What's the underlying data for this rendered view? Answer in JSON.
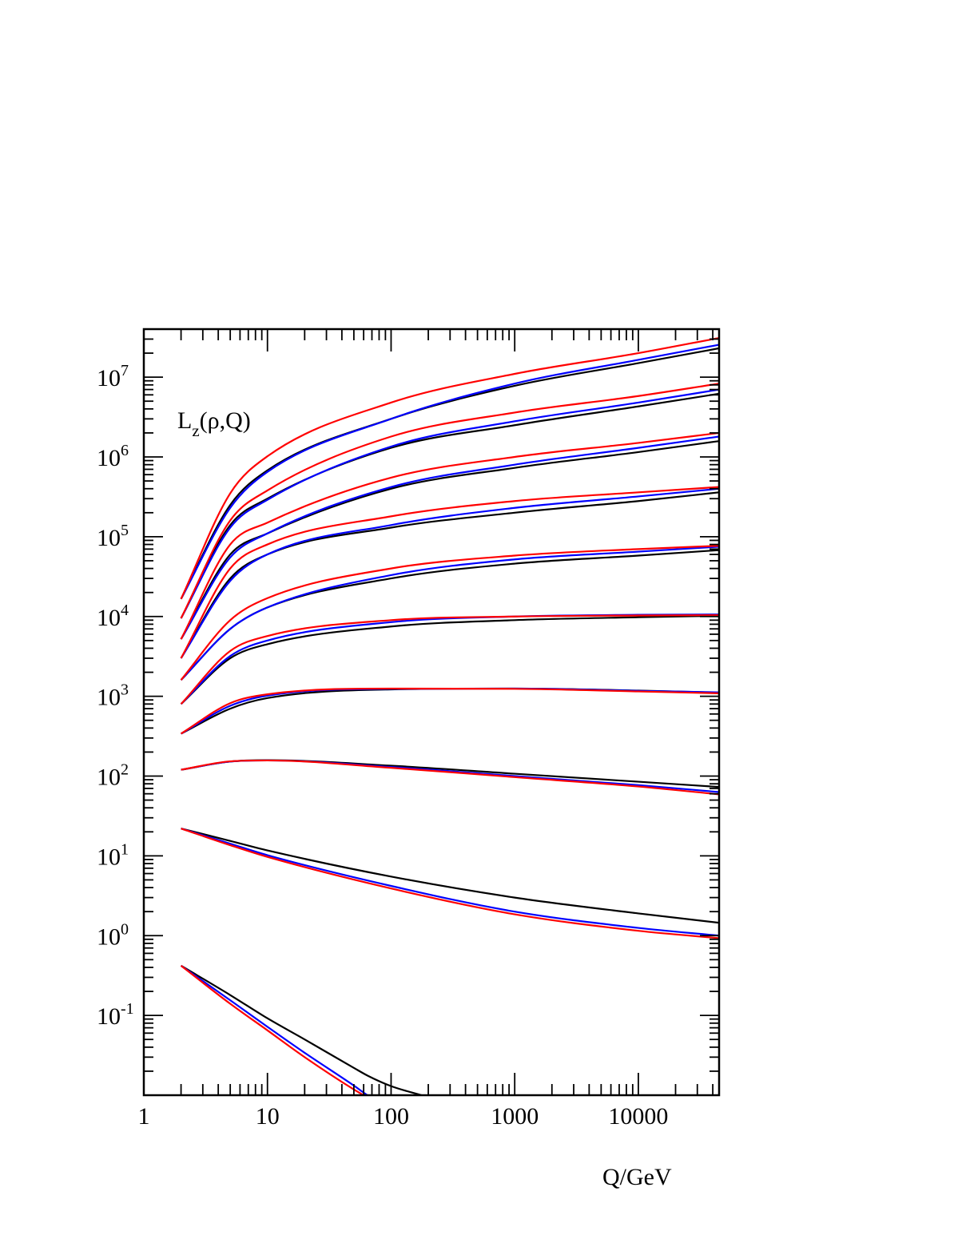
{
  "chart_data": {
    "type": "line",
    "title": "",
    "annotation": {
      "main": "L",
      "sub": "z",
      "rest": "(ρ,Q)"
    },
    "xlabel": "Q/GeV",
    "ylabel": "",
    "x_scale": "log",
    "y_scale": "log",
    "xlim": [
      1,
      45000
    ],
    "ylim": [
      0.01,
      40000000
    ],
    "x_ticks": [
      {
        "value": 1,
        "label": "1"
      },
      {
        "value": 10,
        "label": "10"
      },
      {
        "value": 100,
        "label": "100"
      },
      {
        "value": 1000,
        "label": "1000"
      },
      {
        "value": 10000,
        "label": "10000"
      }
    ],
    "y_ticks": [
      {
        "value": 0.1,
        "base": "10",
        "exp": "-1"
      },
      {
        "value": 1,
        "base": "10",
        "exp": "0"
      },
      {
        "value": 10,
        "base": "10",
        "exp": "1"
      },
      {
        "value": 100,
        "base": "10",
        "exp": "2"
      },
      {
        "value": 1000,
        "base": "10",
        "exp": "3"
      },
      {
        "value": 10000,
        "base": "10",
        "exp": "4"
      },
      {
        "value": 100000,
        "base": "10",
        "exp": "5"
      },
      {
        "value": 1000000,
        "base": "10",
        "exp": "6"
      },
      {
        "value": 10000000,
        "base": "10",
        "exp": "7"
      }
    ],
    "colors": {
      "black": "#000000",
      "blue": "#0000ff",
      "red": "#ff0000"
    },
    "groups": [
      {
        "x": [
          2,
          5,
          10,
          100,
          1000,
          10000,
          45000
        ],
        "black": [
          16600,
          250000,
          680000,
          3000000,
          7800000,
          15000000,
          23000000
        ],
        "blue": [
          16600,
          230000,
          650000,
          3000000,
          8300000,
          16500000,
          25500000
        ],
        "red": [
          16600,
          350000,
          1020000,
          4800000,
          11000000,
          20000000,
          31000000
        ]
      },
      {
        "x": [
          2,
          5,
          10,
          100,
          1000,
          10000,
          45000
        ],
        "black": [
          9500,
          140000,
          300000,
          1300000,
          2500000,
          4300000,
          6200000
        ],
        "blue": [
          9500,
          130000,
          290000,
          1350000,
          2800000,
          4800000,
          7000000
        ],
        "red": [
          9500,
          160000,
          380000,
          1800000,
          3600000,
          5800000,
          8300000
        ]
      },
      {
        "x": [
          2,
          5,
          10,
          100,
          1000,
          10000,
          45000
        ],
        "black": [
          5200,
          60000,
          110000,
          400000,
          730000,
          1150000,
          1580000
        ],
        "blue": [
          5200,
          55000,
          110000,
          420000,
          800000,
          1300000,
          1800000
        ],
        "red": [
          5200,
          80000,
          150000,
          550000,
          1000000,
          1500000,
          2000000
        ]
      },
      {
        "x": [
          2,
          5,
          10,
          100,
          1000,
          10000,
          45000
        ],
        "black": [
          3000,
          30000,
          60000,
          130000,
          200000,
          280000,
          360000
        ],
        "blue": [
          3000,
          28000,
          60000,
          140000,
          230000,
          320000,
          400000
        ],
        "red": [
          3000,
          40000,
          80000,
          180000,
          280000,
          360000,
          420000
        ]
      },
      {
        "x": [
          2,
          5,
          10,
          100,
          1000,
          10000,
          45000
        ],
        "black": [
          1600,
          7000,
          13000,
          30000,
          46000,
          58000,
          68000
        ],
        "blue": [
          1600,
          7000,
          13000,
          33000,
          52000,
          65000,
          75000
        ],
        "red": [
          1600,
          9000,
          17000,
          40000,
          58000,
          70000,
          77000
        ]
      },
      {
        "x": [
          2,
          5,
          10,
          100,
          1000,
          10000,
          45000
        ],
        "black": [
          800,
          3000,
          4500,
          7500,
          9000,
          9800,
          10200
        ],
        "blue": [
          800,
          3200,
          5000,
          8500,
          10000,
          10500,
          10600
        ],
        "red": [
          800,
          3700,
          5700,
          9000,
          10000,
          10300,
          10400
        ]
      },
      {
        "x": [
          2,
          5,
          10,
          100,
          1000,
          10000,
          45000
        ],
        "black": [
          340,
          700,
          950,
          1220,
          1250,
          1180,
          1110
        ],
        "blue": [
          340,
          760,
          1020,
          1240,
          1250,
          1170,
          1120
        ],
        "red": [
          340,
          820,
          1060,
          1250,
          1240,
          1150,
          1090
        ]
      },
      {
        "x": [
          2,
          5,
          10,
          100,
          1000,
          10000,
          45000
        ],
        "black": [
          120,
          152,
          158,
          135,
          107,
          85,
          73
        ],
        "blue": [
          120,
          152,
          157,
          130,
          100,
          77,
          63
        ],
        "red": [
          120,
          153,
          157,
          127,
          97,
          74,
          59
        ]
      },
      {
        "x": [
          2,
          5,
          10,
          100,
          1000,
          10000,
          45000
        ],
        "black": [
          22,
          15.4,
          11.7,
          5.5,
          3.0,
          1.9,
          1.45
        ],
        "blue": [
          22,
          14.2,
          10.2,
          4.2,
          2.0,
          1.25,
          1.0
        ],
        "red": [
          22,
          13.6,
          9.7,
          3.9,
          1.85,
          1.15,
          0.93
        ]
      },
      {
        "x": [
          2,
          5,
          10,
          20,
          50,
          65,
          100,
          180
        ],
        "black": [
          0.42,
          0.18,
          0.092,
          0.05,
          0.022,
          0.0175,
          0.013,
          0.0099
        ],
        "blue": [
          0.42,
          0.155,
          0.072,
          0.034,
          0.0132,
          0.0099,
          0.0068,
          0.004
        ],
        "red": [
          0.42,
          0.14,
          0.065,
          0.03,
          0.0118,
          0.0093,
          0.0062,
          0.0037
        ]
      }
    ]
  }
}
